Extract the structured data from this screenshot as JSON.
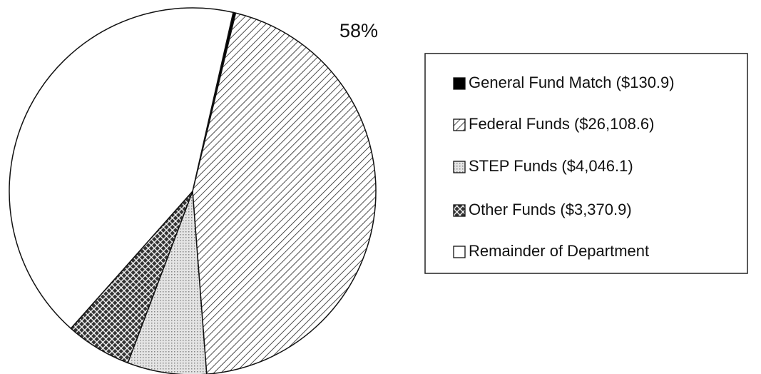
{
  "chart_data": {
    "type": "pie",
    "categories": [
      "General Fund Match ($130.9)",
      "Federal Funds  ($26,108.6)",
      "STEP Funds  ($4,046.1)",
      "Other Funds  ($3,370.9)",
      "Remainder of Department"
    ],
    "values": [
      130.9,
      26108.6,
      4046.1,
      3370.9,
      24372
    ],
    "annotation": "58%",
    "legend": "right"
  }
}
